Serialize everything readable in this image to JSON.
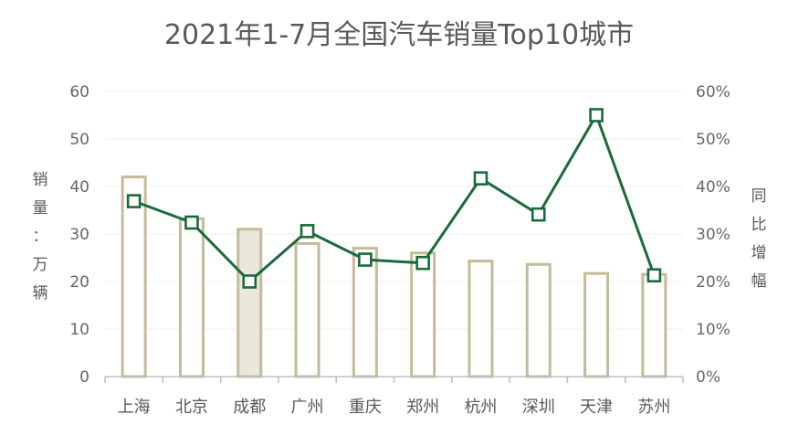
{
  "chart_data": {
    "type": "bar",
    "title": "2021年1-7月全国汽车销量Top10城市",
    "categories": [
      "上海",
      "北京",
      "成都",
      "广州",
      "重庆",
      "郑州",
      "杭州",
      "深圳",
      "天津",
      "苏州"
    ],
    "series": [
      {
        "type": "bar",
        "axis": "left",
        "values": [
          42,
          33.2,
          31,
          28,
          27,
          26,
          24.3,
          23.6,
          21.7,
          21.5
        ]
      },
      {
        "type": "line",
        "axis": "right",
        "values": [
          36.9,
          32.4,
          20.0,
          30.6,
          24.6,
          23.9,
          41.7,
          34.1,
          55.0,
          21.3
        ]
      }
    ],
    "ylabel": "销量：万辆",
    "ylim": [
      0,
      60
    ],
    "yticks": [
      "0",
      "10",
      "20",
      "30",
      "40",
      "50",
      "60"
    ],
    "y2label": "同比增幅",
    "y2lim": [
      0,
      60
    ],
    "y2ticks": [
      "0%",
      "10%",
      "20%",
      "30%",
      "40%",
      "50%",
      "60%"
    ],
    "highlight_index": 2,
    "grid": true,
    "colors": {
      "bar_stroke": "#c4bb98",
      "bar_fill": "#ffffff",
      "bar_highlight_fill": "#ebe7da",
      "line": "#1a6b3a",
      "grid": "#efefef",
      "axis": "#bfbfbf"
    }
  }
}
